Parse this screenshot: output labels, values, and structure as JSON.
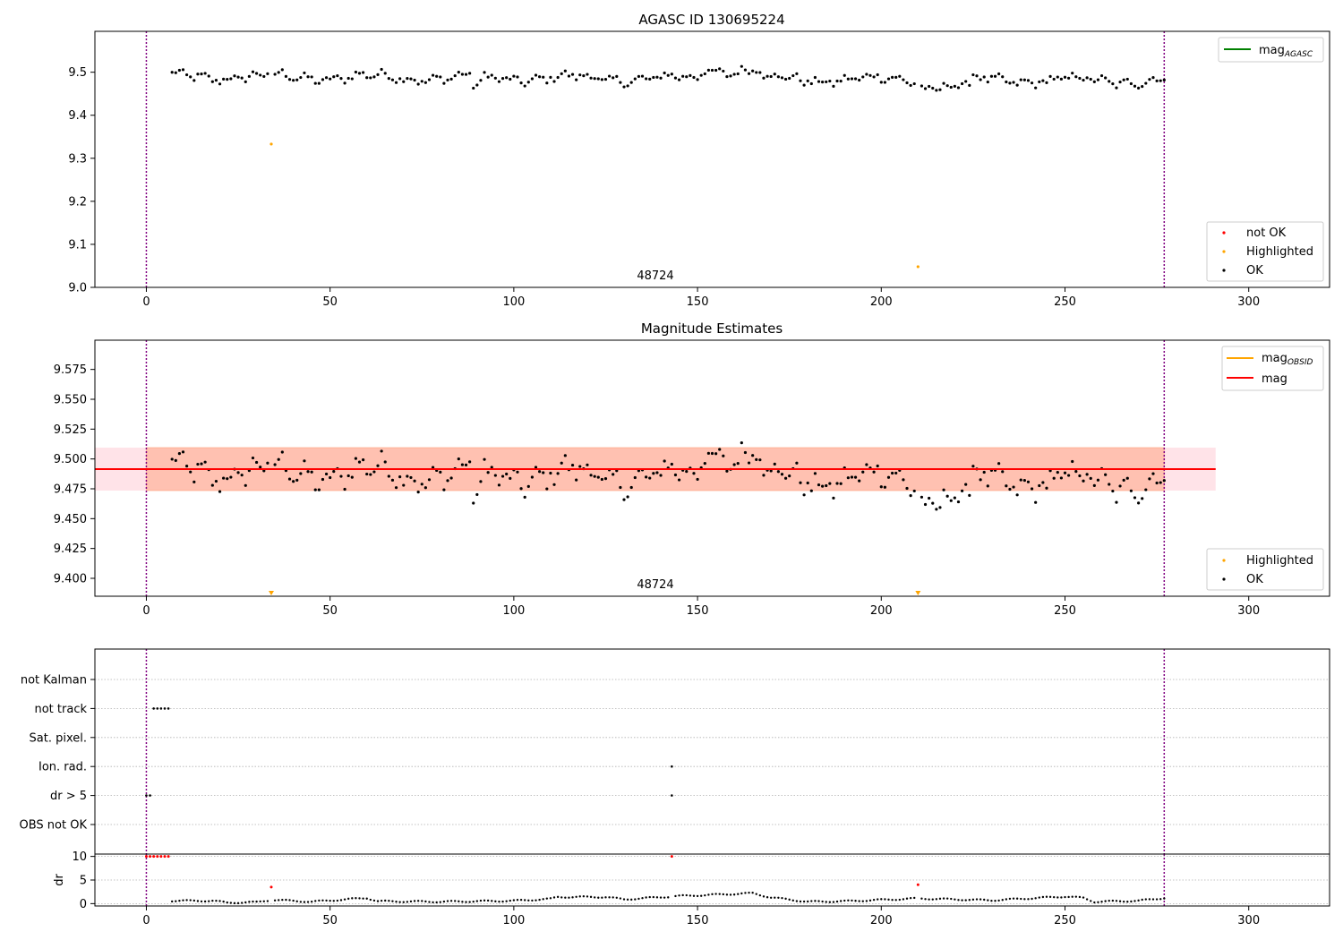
{
  "colors": {
    "ok": "#000000",
    "not_ok": "#ff0000",
    "highlighted": "#ffa500",
    "mag_agasc": "#008000",
    "mag_obsid": "#ffa500",
    "mag": "#ff0000",
    "obs_boundary": "#800080",
    "band_inner": "#ffa07a",
    "band_outer": "#ffc0cb",
    "grid": "#b0b0b0"
  },
  "chart_data": [
    {
      "type": "scatter",
      "title": "AGASC ID 130695224",
      "xlim": [
        -14,
        322
      ],
      "ylim": [
        9.0,
        9.595
      ],
      "x_ticks": [
        "0",
        "50",
        "100",
        "150",
        "200",
        "250",
        "300"
      ],
      "y_ticks": [
        "9.0",
        "9.1",
        "9.2",
        "9.3",
        "9.4",
        "9.5"
      ],
      "obsid_label": "48724",
      "obs_boundaries": [
        0,
        277
      ],
      "ok_segments": [
        {
          "x0": 7,
          "x1": 277,
          "v0": 9.49,
          "v1": 9.48,
          "amp": 0.018
        }
      ],
      "highlighted_points": [
        [
          34,
          9.333
        ],
        [
          210,
          9.048
        ]
      ],
      "legend_top": [
        {
          "label": "mag",
          "sub": "AGASC",
          "color_key": "mag_agasc"
        }
      ],
      "legend_bottom": [
        "not OK",
        "Highlighted",
        "OK"
      ]
    },
    {
      "type": "scatter",
      "title": "Magnitude Estimates",
      "xlim": [
        -14,
        322
      ],
      "ylim": [
        9.385,
        9.5995
      ],
      "x_ticks": [
        "0",
        "50",
        "100",
        "150",
        "200",
        "250",
        "300"
      ],
      "y_ticks": [
        "9.400",
        "9.425",
        "9.450",
        "9.475",
        "9.500",
        "9.525",
        "9.550",
        "9.575"
      ],
      "obsid_label": "48724",
      "obs_boundaries": [
        0,
        277
      ],
      "mag_obsid": 9.4915,
      "mag": 9.4915,
      "mag_obsid_band": [
        9.4735,
        9.5095
      ],
      "mag_band": [
        9.4735,
        9.5095
      ],
      "band_x_inner": [
        0,
        277
      ],
      "band_x_outer": [
        -14,
        291
      ],
      "highlighted_points": [
        [
          34,
          9.388
        ],
        [
          210,
          9.388
        ]
      ],
      "legend_top": [
        {
          "label": "mag",
          "sub": "OBSID",
          "color_key": "mag_obsid"
        },
        {
          "label": "mag",
          "sub": "",
          "color_key": "mag"
        }
      ],
      "legend_bottom": [
        "Highlighted",
        "OK"
      ]
    },
    {
      "type": "scatter",
      "title": "",
      "xlim": [
        -14,
        322
      ],
      "x_ticks": [
        "0",
        "50",
        "100",
        "150",
        "200",
        "250",
        "300"
      ],
      "flag_labels": [
        "not Kalman",
        "not track",
        "Sat. pixel.",
        "Ion. rad.",
        "dr > 5",
        "OBS not OK"
      ],
      "flag_points": {
        "not track": [
          2,
          3,
          4,
          5,
          6
        ],
        "Ion. rad.": [
          143
        ],
        "dr > 5": [
          0,
          1,
          143
        ],
        "OBS not OK": []
      },
      "obs_boundaries": [
        0,
        277
      ]
    },
    {
      "type": "scatter",
      "title": "",
      "ylabel": "dr",
      "xlim": [
        -14,
        322
      ],
      "ylim": [
        -0.5,
        10.5
      ],
      "y_ticks": [
        "0",
        "5",
        "10"
      ],
      "x_ticks": [
        "0",
        "50",
        "100",
        "150",
        "200",
        "250",
        "300"
      ],
      "red_points": [
        [
          0,
          10
        ],
        [
          1,
          10
        ],
        [
          2,
          10
        ],
        [
          3,
          10
        ],
        [
          4,
          10
        ],
        [
          5,
          10
        ],
        [
          6,
          10
        ],
        [
          143,
          10
        ],
        [
          34,
          3.5
        ],
        [
          210,
          4
        ]
      ],
      "ok_dr_profile": [
        [
          7,
          0.6
        ],
        [
          18,
          0.6
        ],
        [
          22,
          0.2
        ],
        [
          30,
          0.3
        ],
        [
          34,
          0.8
        ],
        [
          45,
          0.4
        ],
        [
          60,
          1.2
        ],
        [
          63,
          0.5
        ],
        [
          80,
          0.4
        ],
        [
          100,
          0.6
        ],
        [
          110,
          1.0
        ],
        [
          112,
          1.4
        ],
        [
          125,
          1.4
        ],
        [
          130,
          0.9
        ],
        [
          145,
          1.6
        ],
        [
          165,
          2.2
        ],
        [
          170,
          1.3
        ],
        [
          180,
          0.4
        ],
        [
          190,
          0.5
        ],
        [
          210,
          1.1
        ],
        [
          230,
          0.7
        ],
        [
          250,
          1.5
        ],
        [
          255,
          1.2
        ],
        [
          258,
          0.4
        ],
        [
          270,
          0.6
        ],
        [
          277,
          1.2
        ]
      ],
      "obs_boundaries": [
        0,
        277
      ]
    }
  ]
}
